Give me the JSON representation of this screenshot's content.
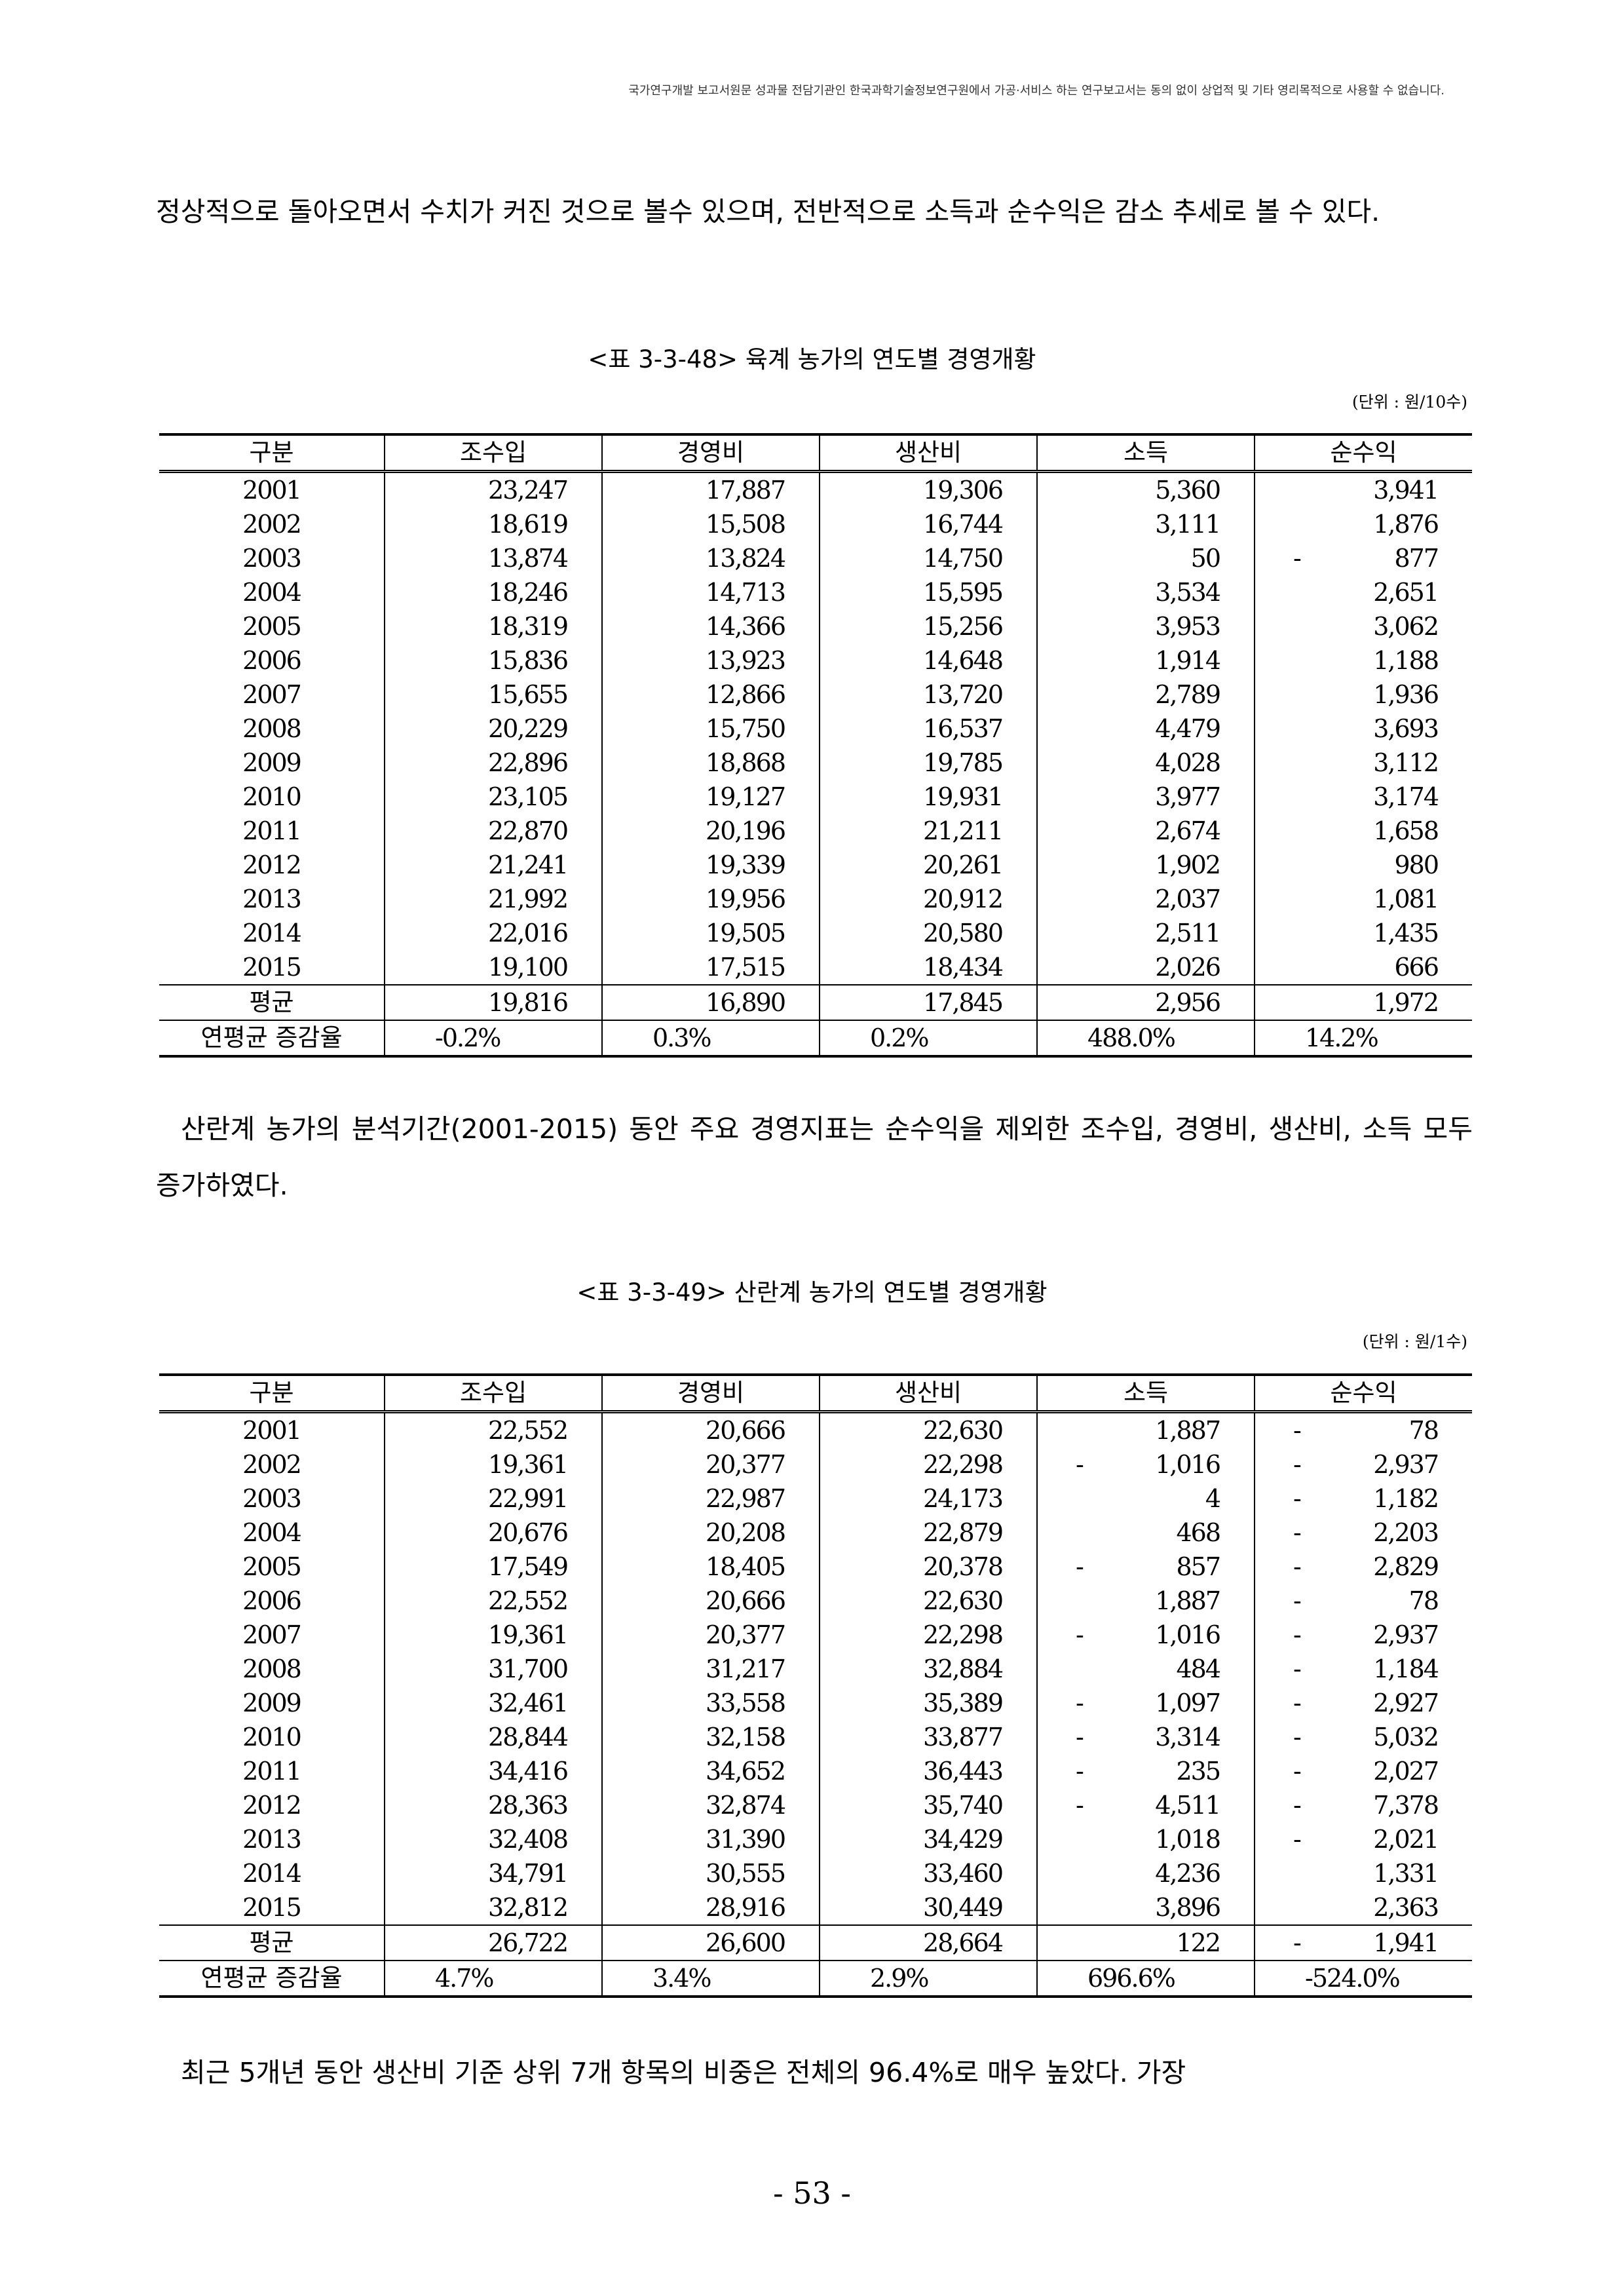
{
  "header_note": "국가연구개발 보고서원문 성과물 전담기관인 한국과학기술정보연구원에서 가공·서비스 하는 연구보고서는 동의 없이 상업적 및 기타 영리목적으로 사용할 수 없습니다.",
  "paragraphs": {
    "top": "정상적으로 돌아오면서 수치가 커진 것으로 볼수 있으며, 전반적으로 소득과 순수익은 감소 추세로 볼 수 있다.",
    "middle": "산란계 농가의 분석기간(2001-2015) 동안 주요 경영지표는 순수익을 제외한 조수입, 경영비, 생산비, 소득 모두 증가하였다.",
    "bottom": "최근 5개년 동안 생산비 기준 상위 7개 항목의 비중은 전체의 96.4%로 매우 높았다. 가장"
  },
  "tables": [
    {
      "caption": "<표 3-3-48> 육계 농가의 연도별 경영개황",
      "unit": "(단위 : 원/10수)",
      "headers": [
        "구분",
        "조수입",
        "경영비",
        "생산비",
        "소득",
        "순수익"
      ],
      "rows": [
        [
          "2001",
          "23,247",
          "17,887",
          "19,306",
          "5,360",
          "3,941"
        ],
        [
          "2002",
          "18,619",
          "15,508",
          "16,744",
          "3,111",
          "1,876"
        ],
        [
          "2003",
          "13,874",
          "13,824",
          "14,750",
          "50",
          "- 877"
        ],
        [
          "2004",
          "18,246",
          "14,713",
          "15,595",
          "3,534",
          "2,651"
        ],
        [
          "2005",
          "18,319",
          "14,366",
          "15,256",
          "3,953",
          "3,062"
        ],
        [
          "2006",
          "15,836",
          "13,923",
          "14,648",
          "1,914",
          "1,188"
        ],
        [
          "2007",
          "15,655",
          "12,866",
          "13,720",
          "2,789",
          "1,936"
        ],
        [
          "2008",
          "20,229",
          "15,750",
          "16,537",
          "4,479",
          "3,693"
        ],
        [
          "2009",
          "22,896",
          "18,868",
          "19,785",
          "4,028",
          "3,112"
        ],
        [
          "2010",
          "23,105",
          "19,127",
          "19,931",
          "3,977",
          "3,174"
        ],
        [
          "2011",
          "22,870",
          "20,196",
          "21,211",
          "2,674",
          "1,658"
        ],
        [
          "2012",
          "21,241",
          "19,339",
          "20,261",
          "1,902",
          "980"
        ],
        [
          "2013",
          "21,992",
          "19,956",
          "20,912",
          "2,037",
          "1,081"
        ],
        [
          "2014",
          "22,016",
          "19,505",
          "20,580",
          "2,511",
          "1,435"
        ],
        [
          "2015",
          "19,100",
          "17,515",
          "18,434",
          "2,026",
          "666"
        ]
      ],
      "average": [
        "평균",
        "19,816",
        "16,890",
        "17,845",
        "2,956",
        "1,972"
      ],
      "growth": [
        "연평균 증감율",
        "-0.2%",
        "0.3%",
        "0.2%",
        "488.0%",
        "14.2%"
      ]
    },
    {
      "caption": "<표 3-3-49> 산란계 농가의 연도별 경영개황",
      "unit": "(단위 : 원/1수)",
      "headers": [
        "구분",
        "조수입",
        "경영비",
        "생산비",
        "소득",
        "순수익"
      ],
      "rows": [
        [
          "2001",
          "22,552",
          "20,666",
          "22,630",
          "1,887",
          "- 78"
        ],
        [
          "2002",
          "19,361",
          "20,377",
          "22,298",
          "- 1,016",
          "- 2,937"
        ],
        [
          "2003",
          "22,991",
          "22,987",
          "24,173",
          "4",
          "- 1,182"
        ],
        [
          "2004",
          "20,676",
          "20,208",
          "22,879",
          "468",
          "- 2,203"
        ],
        [
          "2005",
          "17,549",
          "18,405",
          "20,378",
          "- 857",
          "- 2,829"
        ],
        [
          "2006",
          "22,552",
          "20,666",
          "22,630",
          "1,887",
          "- 78"
        ],
        [
          "2007",
          "19,361",
          "20,377",
          "22,298",
          "- 1,016",
          "- 2,937"
        ],
        [
          "2008",
          "31,700",
          "31,217",
          "32,884",
          "484",
          "- 1,184"
        ],
        [
          "2009",
          "32,461",
          "33,558",
          "35,389",
          "- 1,097",
          "- 2,927"
        ],
        [
          "2010",
          "28,844",
          "32,158",
          "33,877",
          "- 3,314",
          "- 5,032"
        ],
        [
          "2011",
          "34,416",
          "34,652",
          "36,443",
          "- 235",
          "- 2,027"
        ],
        [
          "2012",
          "28,363",
          "32,874",
          "35,740",
          "- 4,511",
          "- 7,378"
        ],
        [
          "2013",
          "32,408",
          "31,390",
          "34,429",
          "1,018",
          "- 2,021"
        ],
        [
          "2014",
          "34,791",
          "30,555",
          "33,460",
          "4,236",
          "1,331"
        ],
        [
          "2015",
          "32,812",
          "28,916",
          "30,449",
          "3,896",
          "2,363"
        ]
      ],
      "average": [
        "평균",
        "26,722",
        "26,600",
        "28,664",
        "122",
        "- 1,941"
      ],
      "growth": [
        "연평균 증감율",
        "4.7%",
        "3.4%",
        "2.9%",
        "696.6%",
        "-524.0%"
      ]
    }
  ],
  "page_number": "- 53 -"
}
